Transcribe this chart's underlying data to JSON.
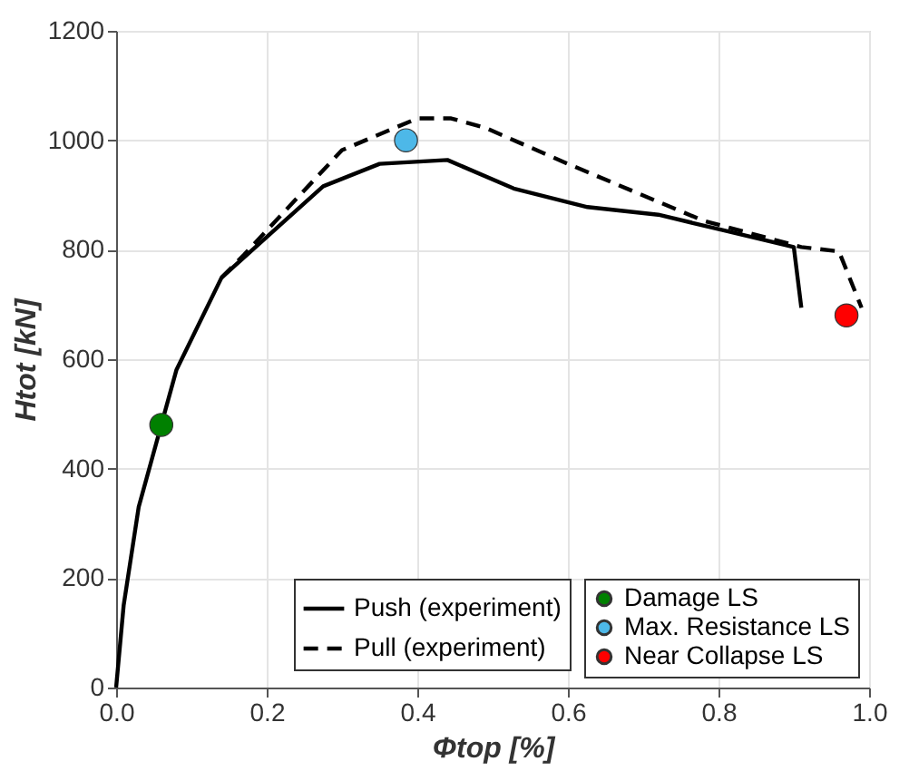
{
  "chart_data": {
    "type": "line",
    "xlabel": "Φtop [%]",
    "ylabel": "Htot [kN]",
    "xlim": [
      0,
      1
    ],
    "ylim": [
      0,
      1200
    ],
    "xticks": [
      {
        "value": 0,
        "label": "0.0"
      },
      {
        "value": 0.2,
        "label": "0.2"
      },
      {
        "value": 0.4,
        "label": "0.4"
      },
      {
        "value": 0.6,
        "label": "0.6"
      },
      {
        "value": 0.8,
        "label": "0.8"
      },
      {
        "value": 1,
        "label": "1.0"
      }
    ],
    "yticks": [
      0,
      200,
      400,
      600,
      800,
      1000,
      1200
    ],
    "grid": true,
    "legend": "bottom right",
    "series": [
      {
        "name": "Push (experiment)",
        "line_style": "solid",
        "color": "#000000",
        "x": [
          0,
          0.01,
          0.03,
          0.06,
          0.08,
          0.14,
          0.275,
          0.35,
          0.44,
          0.528,
          0.626,
          0.72,
          0.9,
          0.91
        ],
        "values": [
          0,
          150,
          330,
          480,
          580,
          749,
          916,
          957,
          964,
          912,
          878,
          864,
          805,
          694
        ]
      },
      {
        "name": "Pull (experiment)",
        "line_style": "dashed",
        "color": "#000000",
        "x": [
          0.14,
          0.17,
          0.3,
          0.4,
          0.445,
          0.49,
          0.6,
          0.78,
          0.91,
          0.96,
          0.99
        ],
        "values": [
          749,
          791,
          982,
          1040,
          1040,
          1023,
          957,
          853,
          805,
          797,
          694
        ]
      },
      {
        "name": "Damage LS",
        "type": "scatter",
        "marker": "circle",
        "color": "#008000",
        "x": [
          0.06
        ],
        "values": [
          480
        ]
      },
      {
        "name": "Max. Resistance LS",
        "type": "scatter",
        "marker": "circle",
        "color": "#4db8e8",
        "x": [
          0.385
        ],
        "values": [
          1000
        ]
      },
      {
        "name": "Near Collapse LS",
        "type": "scatter",
        "marker": "circle",
        "color": "#ff0000",
        "x": [
          0.97
        ],
        "values": [
          680
        ]
      }
    ]
  }
}
